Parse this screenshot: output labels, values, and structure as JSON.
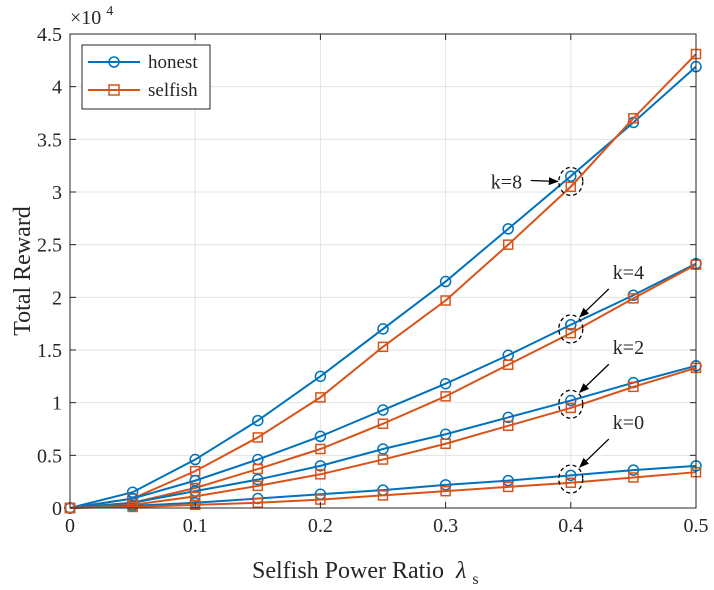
{
  "chart_data": {
    "type": "line",
    "title": "",
    "xlabel": "Selfish Power Ratio",
    "xlabel_symbol": "λ",
    "xlabel_subscript": "s",
    "ylabel": "Total Reward",
    "y_exponent_base": "×10",
    "y_exponent_power": "4",
    "xlim": [
      0,
      0.5
    ],
    "ylim": [
      0,
      4.5
    ],
    "x_ticks": [
      "0",
      "0.1",
      "0.2",
      "0.3",
      "0.4",
      "0.5"
    ],
    "y_ticks": [
      "0",
      "0.5",
      "1",
      "1.5",
      "2",
      "2.5",
      "3",
      "3.5",
      "4",
      "4.5"
    ],
    "grid": true,
    "legend_position": "top-left",
    "legend": [
      {
        "name": "honest",
        "color": "#0072BD",
        "marker": "circle"
      },
      {
        "name": "selfish",
        "color": "#D95319",
        "marker": "square"
      }
    ],
    "x": [
      0,
      0.05,
      0.1,
      0.15,
      0.2,
      0.25,
      0.3,
      0.35,
      0.4,
      0.45,
      0.5
    ],
    "series": [
      {
        "group": "k=8",
        "name": "honest",
        "values": [
          0,
          0.15,
          0.46,
          0.83,
          1.25,
          1.7,
          2.15,
          2.65,
          3.15,
          3.66,
          4.19
        ]
      },
      {
        "group": "k=8",
        "name": "selfish",
        "values": [
          0,
          0.09,
          0.35,
          0.67,
          1.05,
          1.53,
          1.97,
          2.5,
          3.05,
          3.7,
          4.31
        ]
      },
      {
        "group": "k=4",
        "name": "honest",
        "values": [
          0,
          0.09,
          0.26,
          0.46,
          0.68,
          0.93,
          1.18,
          1.45,
          1.74,
          2.02,
          2.32
        ]
      },
      {
        "group": "k=4",
        "name": "selfish",
        "values": [
          0,
          0.05,
          0.19,
          0.37,
          0.56,
          0.8,
          1.06,
          1.36,
          1.66,
          1.99,
          2.31
        ]
      },
      {
        "group": "k=2",
        "name": "honest",
        "values": [
          0,
          0.05,
          0.16,
          0.27,
          0.4,
          0.56,
          0.7,
          0.86,
          1.02,
          1.19,
          1.35
        ]
      },
      {
        "group": "k=2",
        "name": "selfish",
        "values": [
          0,
          0.03,
          0.11,
          0.21,
          0.32,
          0.46,
          0.61,
          0.78,
          0.95,
          1.15,
          1.33
        ]
      },
      {
        "group": "k=0",
        "name": "honest",
        "values": [
          0,
          0.02,
          0.05,
          0.09,
          0.13,
          0.17,
          0.22,
          0.26,
          0.31,
          0.36,
          0.4
        ]
      },
      {
        "group": "k=0",
        "name": "selfish",
        "values": [
          0,
          0.01,
          0.03,
          0.05,
          0.08,
          0.12,
          0.16,
          0.2,
          0.24,
          0.29,
          0.34
        ]
      }
    ],
    "annotations": [
      {
        "text": "k=8",
        "target_x": 0.4,
        "target_y": 3.1
      },
      {
        "text": "k=4",
        "target_x": 0.4,
        "target_y": 1.7
      },
      {
        "text": "k=2",
        "target_x": 0.4,
        "target_y": 0.985
      },
      {
        "text": "k=0",
        "target_x": 0.4,
        "target_y": 0.275
      }
    ]
  }
}
